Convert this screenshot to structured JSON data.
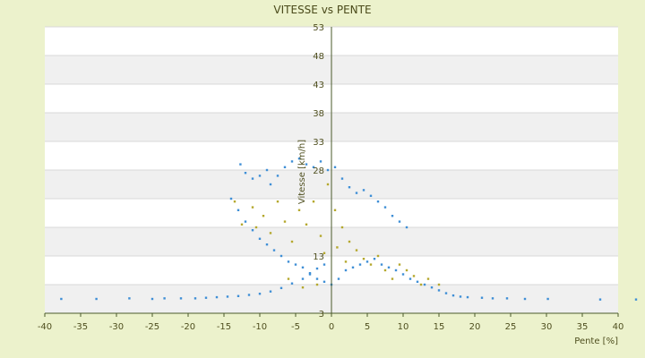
{
  "chart_data": {
    "type": "scatter",
    "title": "VITESSE vs PENTE",
    "xlabel": "Pente [%]",
    "ylabel": "Vitesse [km/h]",
    "xlim": [
      -40,
      40
    ],
    "ylim": [
      3,
      53
    ],
    "x_ticks": [
      -40,
      -35,
      -30,
      -25,
      -20,
      -15,
      -10,
      -5,
      0,
      5,
      10,
      15,
      20,
      25,
      30,
      35,
      40
    ],
    "y_ticks": [
      3,
      8,
      13,
      18,
      23,
      28,
      33,
      38,
      43,
      48,
      53
    ],
    "y_tick_labels": [
      "3",
      "",
      "13",
      "",
      "",
      "28",
      "33",
      "38",
      "43",
      "48",
      "53"
    ],
    "grid": "horizontal-bands",
    "colors": {
      "band_light": "#ffffff",
      "band_dark": "#f0f0f0",
      "series_main": "#3f8fd6",
      "series_secondary": "#b5a82e",
      "axis": "#4a5a2a"
    },
    "series": [
      {
        "color": "#3f8fd6",
        "points": [
          [
            -37.7,
            5.5
          ],
          [
            -32.8,
            5.5
          ],
          [
            -28.2,
            5.6
          ],
          [
            -25.0,
            5.5
          ],
          [
            -23.3,
            5.6
          ],
          [
            -21.0,
            5.6
          ],
          [
            -19.0,
            5.6
          ],
          [
            -17.5,
            5.7
          ],
          [
            -16.0,
            5.8
          ],
          [
            -14.5,
            5.9
          ],
          [
            -13.0,
            6.0
          ],
          [
            -11.5,
            6.2
          ],
          [
            -10.0,
            6.4
          ],
          [
            -8.5,
            6.8
          ],
          [
            -7.0,
            7.4
          ],
          [
            -5.5,
            8.2
          ],
          [
            -4.0,
            9.0
          ],
          [
            -3.0,
            9.8
          ],
          [
            -2.0,
            10.8
          ],
          [
            -1.0,
            11.5
          ],
          [
            -12.7,
            29.0
          ],
          [
            -12.0,
            27.5
          ],
          [
            -11.0,
            26.5
          ],
          [
            -10.0,
            27.0
          ],
          [
            -9.0,
            28.0
          ],
          [
            -8.5,
            25.5
          ],
          [
            -7.5,
            27.0
          ],
          [
            -6.5,
            28.5
          ],
          [
            -5.5,
            29.5
          ],
          [
            -4.5,
            30.0
          ],
          [
            -3.5,
            29.0
          ],
          [
            -2.5,
            28.5
          ],
          [
            -1.5,
            29.5
          ],
          [
            -0.5,
            28.0
          ],
          [
            0.5,
            28.5
          ],
          [
            1.5,
            26.5
          ],
          [
            2.5,
            25.0
          ],
          [
            3.5,
            24.0
          ],
          [
            4.5,
            24.5
          ],
          [
            5.5,
            23.5
          ],
          [
            6.5,
            22.5
          ],
          [
            7.5,
            21.5
          ],
          [
            8.5,
            20.0
          ],
          [
            9.5,
            19.0
          ],
          [
            10.5,
            18.0
          ],
          [
            -14.0,
            23.0
          ],
          [
            -13.0,
            21.0
          ],
          [
            -12.0,
            19.0
          ],
          [
            -11.0,
            17.5
          ],
          [
            -10.0,
            16.0
          ],
          [
            -9.0,
            15.0
          ],
          [
            -8.0,
            14.0
          ],
          [
            -7.0,
            13.0
          ],
          [
            -6.0,
            12.0
          ],
          [
            -5.0,
            11.5
          ],
          [
            -4.0,
            11.0
          ],
          [
            -3.0,
            10.0
          ],
          [
            -2.0,
            9.0
          ],
          [
            -1.0,
            8.5
          ],
          [
            0.0,
            8.0
          ],
          [
            1.0,
            9.0
          ],
          [
            2.0,
            10.5
          ],
          [
            3.0,
            11.0
          ],
          [
            4.0,
            11.5
          ],
          [
            5.0,
            12.0
          ],
          [
            6.0,
            12.5
          ],
          [
            7.0,
            11.5
          ],
          [
            8.0,
            11.0
          ],
          [
            9.0,
            10.5
          ],
          [
            10.0,
            9.8
          ],
          [
            11.0,
            9.0
          ],
          [
            12.0,
            8.5
          ],
          [
            13.0,
            8.0
          ],
          [
            14.0,
            7.5
          ],
          [
            15.0,
            7.0
          ],
          [
            16.0,
            6.5
          ],
          [
            17.0,
            6.1
          ],
          [
            18.0,
            5.9
          ],
          [
            19.0,
            5.8
          ],
          [
            21.0,
            5.7
          ],
          [
            22.5,
            5.6
          ],
          [
            24.5,
            5.6
          ],
          [
            27.0,
            5.5
          ],
          [
            30.2,
            5.5
          ],
          [
            37.5,
            5.4
          ],
          [
            42.5,
            5.4
          ]
        ]
      },
      {
        "color": "#b5a82e",
        "points": [
          [
            -13.5,
            22.5
          ],
          [
            -12.5,
            18.5
          ],
          [
            -11.0,
            21.5
          ],
          [
            -10.5,
            18.0
          ],
          [
            -9.5,
            20.0
          ],
          [
            -8.5,
            17.0
          ],
          [
            -7.5,
            22.5
          ],
          [
            -6.5,
            19.0
          ],
          [
            -5.5,
            15.5
          ],
          [
            -4.5,
            21.0
          ],
          [
            -3.5,
            18.5
          ],
          [
            -2.5,
            22.5
          ],
          [
            -1.5,
            16.5
          ],
          [
            -0.5,
            25.5
          ],
          [
            0.5,
            21.0
          ],
          [
            1.5,
            18.0
          ],
          [
            2.5,
            15.5
          ],
          [
            3.5,
            14.0
          ],
          [
            4.5,
            12.5
          ],
          [
            5.5,
            11.5
          ],
          [
            6.5,
            13.0
          ],
          [
            7.5,
            10.5
          ],
          [
            8.5,
            9.0
          ],
          [
            9.5,
            11.5
          ],
          [
            10.5,
            10.5
          ],
          [
            11.5,
            9.5
          ],
          [
            12.5,
            8.0
          ],
          [
            13.5,
            9.0
          ],
          [
            15.0,
            8.0
          ],
          [
            -6.0,
            9.0
          ],
          [
            -4.0,
            7.5
          ],
          [
            -2.0,
            8.0
          ],
          [
            -1.0,
            13.5
          ],
          [
            0.8,
            14.5
          ],
          [
            2.0,
            12.0
          ]
        ]
      }
    ]
  }
}
